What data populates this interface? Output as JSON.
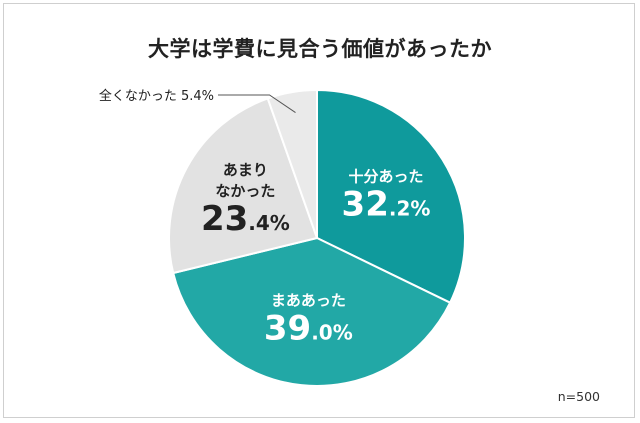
{
  "chart_data": {
    "type": "pie",
    "title": "大学は学費に見合う価値があったか",
    "note": "n=500",
    "slices": [
      {
        "label_lines": [
          "十分あった"
        ],
        "value": 32.2,
        "int": "32",
        "dec": ".2%",
        "color": "#0f9a9c",
        "text_color": "#ffffff"
      },
      {
        "label_lines": [
          "まああった"
        ],
        "value": 39.0,
        "int": "39",
        "dec": ".0%",
        "color": "#22a8a6",
        "text_color": "#ffffff"
      },
      {
        "label_lines": [
          "あまり",
          "なかった"
        ],
        "value": 23.4,
        "int": "23",
        "dec": ".4%",
        "color": "#e2e2e2",
        "text_color": "#222222"
      },
      {
        "label_lines": [
          "全くなかった 5.4%"
        ],
        "value": 5.4,
        "color": "#eaeaea",
        "text_color": "#222222",
        "external": true
      }
    ]
  }
}
